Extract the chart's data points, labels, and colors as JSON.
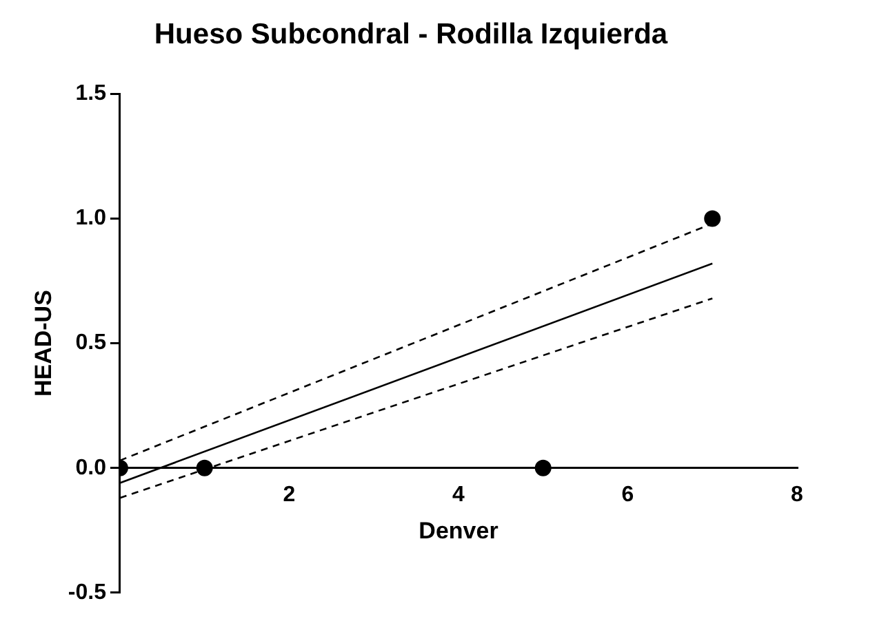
{
  "chart_data": {
    "type": "scatter",
    "title": "Hueso Subcondral - Rodilla Izquierda",
    "xlabel": "Denver",
    "ylabel": "HEAD-US",
    "xlim": [
      0,
      8
    ],
    "xticks": [
      2,
      4,
      6,
      8
    ],
    "ylim": [
      -0.5,
      1.5
    ],
    "yticks": [
      {
        "value": -0.5,
        "label": "-0.5"
      },
      {
        "value": 0,
        "label": "0.0"
      },
      {
        "value": 0.5,
        "label": "0.5"
      },
      {
        "value": 1,
        "label": "1.0"
      },
      {
        "value": 1.5,
        "label": "1.5"
      }
    ],
    "grid": false,
    "legend": false,
    "series": [
      {
        "type": "scatter",
        "color": "#000000",
        "marker": "circle",
        "x": [
          0,
          1,
          5,
          7
        ],
        "values": [
          0,
          0,
          0,
          1
        ]
      },
      {
        "type": "line",
        "color": "#000000",
        "marker": "none",
        "line_style": "solid",
        "x": [
          0,
          7
        ],
        "values": [
          -0.06,
          0.82
        ]
      },
      {
        "type": "line",
        "color": "#000000",
        "marker": "none",
        "line_style": "dashed",
        "x": [
          0,
          7
        ],
        "values": [
          0.03,
          0.98
        ]
      },
      {
        "type": "line",
        "color": "#000000",
        "marker": "none",
        "line_style": "dashed",
        "x": [
          0,
          7
        ],
        "values": [
          -0.12,
          0.68
        ]
      }
    ]
  }
}
